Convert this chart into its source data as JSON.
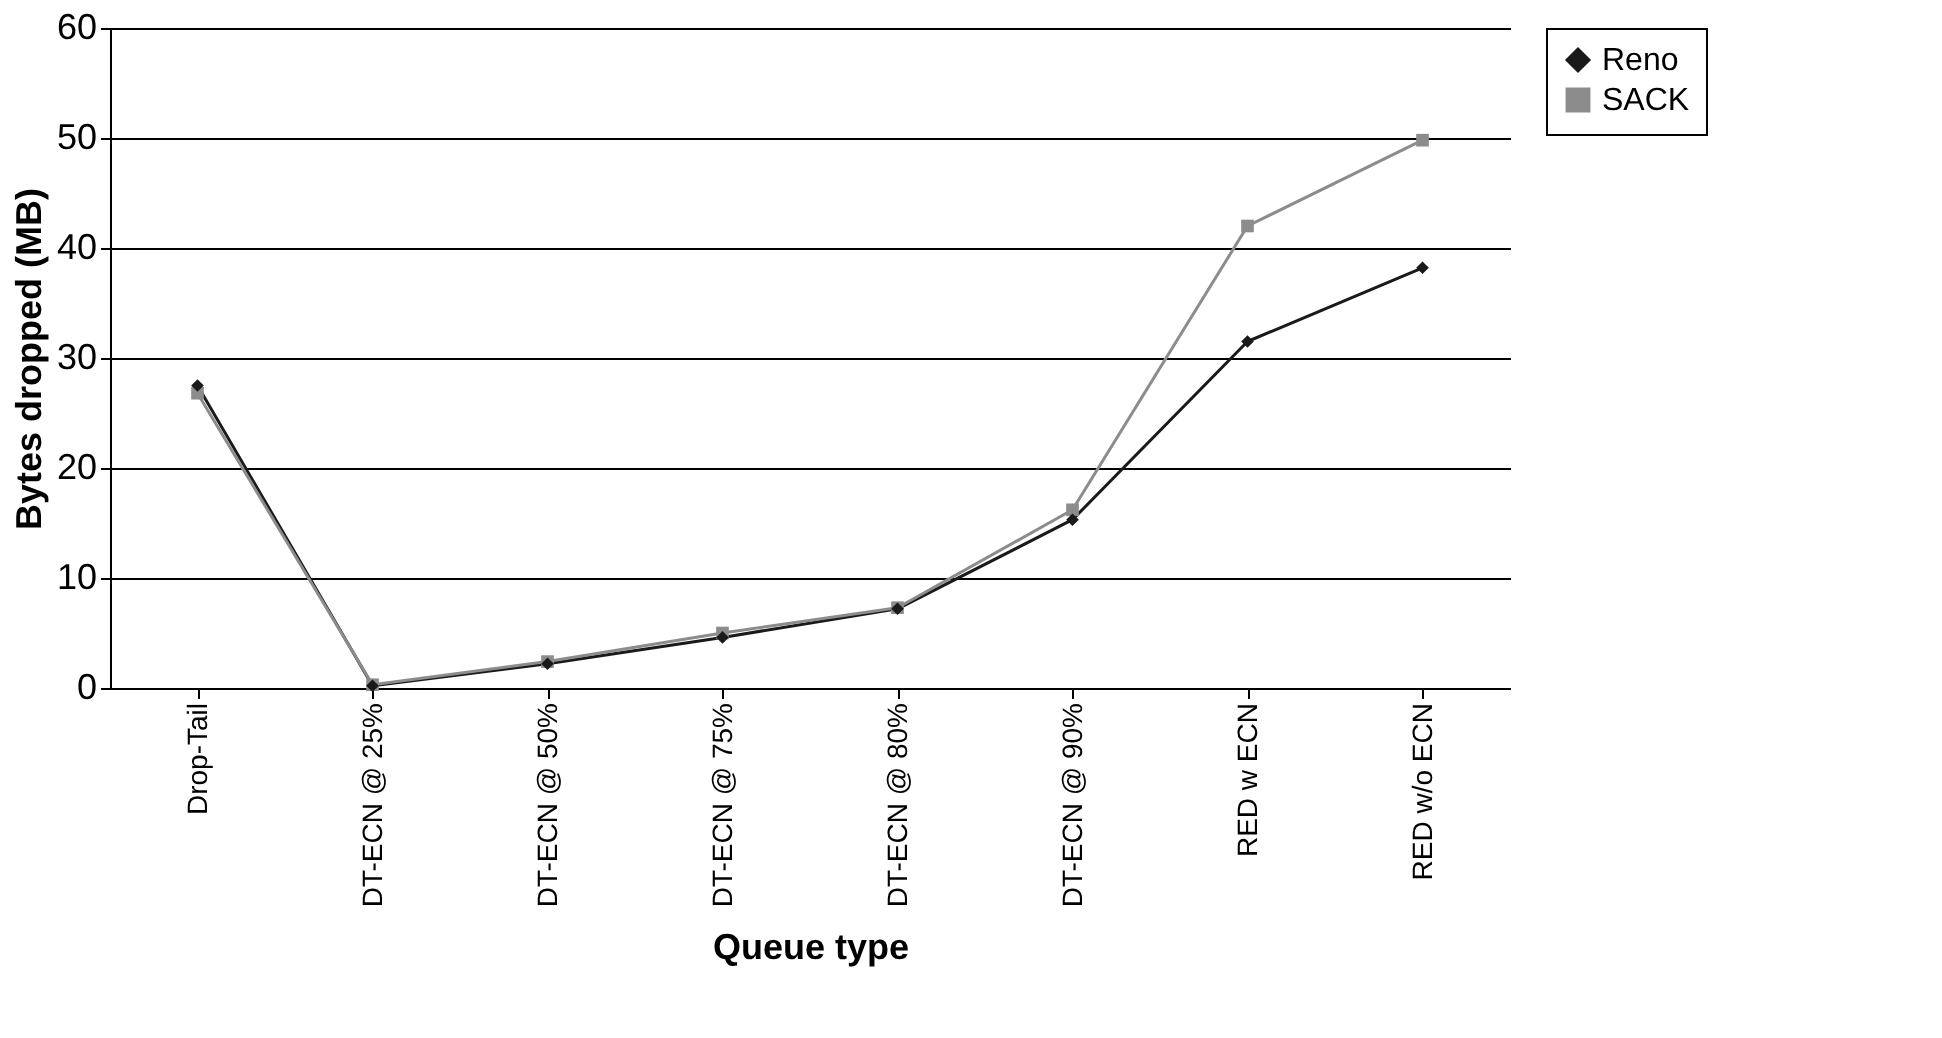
{
  "chart_data": {
    "type": "line",
    "xlabel": "Queue type",
    "ylabel": "Bytes dropped (MB)",
    "categories": [
      "Drop-Tail",
      "DT-ECN @ 25%",
      "DT-ECN @ 50%",
      "DT-ECN @ 75%",
      "DT-ECN @ 80%",
      "DT-ECN @ 90%",
      "RED w ECN",
      "RED w/o ECN"
    ],
    "series": [
      {
        "name": "Reno",
        "color": "#1a1a1a",
        "marker": "diamond",
        "values": [
          27.5,
          0.2,
          2.2,
          4.6,
          7.2,
          15.3,
          31.5,
          38.2
        ]
      },
      {
        "name": "SACK",
        "color": "#8c8c8c",
        "marker": "square",
        "values": [
          26.8,
          0.3,
          2.4,
          5.0,
          7.3,
          16.2,
          42.0,
          49.8
        ]
      }
    ],
    "ylim": [
      0,
      60
    ],
    "yticks": [
      0,
      10,
      20,
      30,
      40,
      50,
      60
    ],
    "grid": "y",
    "legend": "right"
  }
}
